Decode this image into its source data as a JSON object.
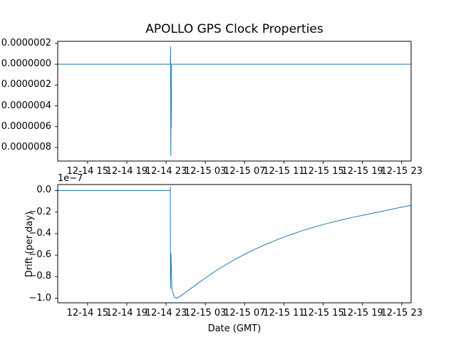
{
  "figure_title": "APOLLO GPS Clock Properties",
  "line_color": "#1f77b4",
  "chart_data": [
    {
      "id": "clock-offset",
      "type": "line",
      "title": "APOLLO GPS Clock Properties",
      "xlabel": "",
      "ylabel": "",
      "legend": "none",
      "grid": false,
      "x_axis": {
        "note": "time axis, hours since 12-14 00:00 GMT",
        "tick_hours": [
          15,
          19,
          23,
          27,
          31,
          35,
          39,
          43,
          47
        ],
        "tick_labels": [
          "12-14 15",
          "12-14 19",
          "12-14 23",
          "12-15 03",
          "12-15 07",
          "12-15 11",
          "12-15 15",
          "12-15 19",
          "12-15 23"
        ],
        "xlim_hours": [
          11.96,
          47.96
        ]
      },
      "y_axis": {
        "tick_values": [
          2e-07,
          0,
          -2e-07,
          -4e-07,
          -6e-07,
          -8e-07
        ],
        "tick_labels": [
          "0.0000002",
          "0.0000000",
          "0.0000002",
          "0.0000004",
          "0.0000006",
          "0.0000008"
        ],
        "ylim_1e7": [
          -9.3,
          2.2
        ],
        "value_scale": 1e-07
      },
      "series": [
        {
          "name": "clock-offset-line",
          "color": "#1f77b4",
          "points_hours_vs_1e7": [
            [
              11.96,
              0
            ],
            [
              23.44,
              0
            ],
            [
              23.46,
              1.65
            ],
            [
              23.48,
              -8.8
            ],
            [
              23.5,
              -5.4
            ],
            [
              23.52,
              -6.1
            ],
            [
              23.56,
              0
            ],
            [
              47.96,
              0
            ]
          ]
        }
      ]
    },
    {
      "id": "clock-drift",
      "type": "line",
      "title": "",
      "xlabel": "Date (GMT)",
      "ylabel": "Drift (per day)",
      "legend": "none",
      "grid": false,
      "x_axis": {
        "note": "time axis, hours since 12-14 00:00 GMT",
        "tick_hours": [
          15,
          19,
          23,
          27,
          31,
          35,
          39,
          43,
          47
        ],
        "tick_labels": [
          "12-14 15",
          "12-14 19",
          "12-14 23",
          "12-15 03",
          "12-15 07",
          "12-15 11",
          "12-15 15",
          "12-15 19",
          "12-15 23"
        ],
        "xlim_hours": [
          11.96,
          47.96
        ]
      },
      "y_axis": {
        "offset_text": "1e−7",
        "tick_values": [
          0.0,
          -0.2,
          -0.4,
          -0.6,
          -0.8,
          -1.0
        ],
        "tick_labels": [
          "0.0",
          "−0.2",
          "−0.4",
          "−0.6",
          "−0.8",
          "−1.0"
        ],
        "ylim_1e7": [
          -1.043,
          0.056
        ],
        "value_scale": 1e-07
      },
      "series": [
        {
          "name": "clock-drift-line",
          "color": "#1f77b4",
          "points_hours_vs_1e7": [
            [
              11.96,
              0
            ],
            [
              23.42,
              0
            ],
            [
              23.43,
              0.03
            ],
            [
              23.45,
              -0.91
            ],
            [
              23.49,
              -0.58
            ],
            [
              23.6,
              -0.92
            ],
            [
              23.85,
              -0.99
            ],
            [
              24.05,
              -1.0
            ],
            [
              24.4,
              -0.985
            ],
            [
              25,
              -0.945
            ],
            [
              26,
              -0.878
            ],
            [
              27,
              -0.812
            ],
            [
              28,
              -0.75
            ],
            [
              29,
              -0.693
            ],
            [
              30,
              -0.64
            ],
            [
              31,
              -0.592
            ],
            [
              32,
              -0.547
            ],
            [
              33,
              -0.506
            ],
            [
              34,
              -0.468
            ],
            [
              35,
              -0.432
            ],
            [
              36,
              -0.4
            ],
            [
              37,
              -0.369
            ],
            [
              38,
              -0.341
            ],
            [
              39,
              -0.316
            ],
            [
              40,
              -0.292
            ],
            [
              41,
              -0.27
            ],
            [
              42,
              -0.249
            ],
            [
              43,
              -0.23
            ],
            [
              44,
              -0.211
            ],
            [
              45,
              -0.192
            ],
            [
              46,
              -0.173
            ],
            [
              47,
              -0.154
            ],
            [
              47.96,
              -0.138
            ]
          ]
        }
      ]
    }
  ]
}
